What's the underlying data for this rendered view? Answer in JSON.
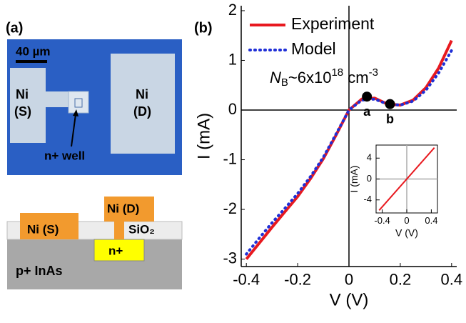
{
  "panel_a": {
    "label": "(a)",
    "scale_bar": "40 µm",
    "photo_labels": {
      "source_top": "Ni",
      "source_bottom": "(S)",
      "drain_top": "Ni",
      "drain_bottom": "(D)",
      "well": "n+ well"
    },
    "schematic_labels": {
      "source": "Ni (S)",
      "drain": "Ni (D)",
      "oxide": "SiO₂",
      "well": "n+",
      "substrate": "p+ InAs"
    }
  },
  "chart_data": [
    {
      "type": "line",
      "panel_label": "(b)",
      "x_label": "V (V)",
      "y_label": "I (mA)",
      "annotation_parts": [
        "N",
        "B",
        "~6x10",
        "18",
        " cm",
        "-3"
      ],
      "x": [
        -0.4,
        -0.35,
        -0.3,
        -0.25,
        -0.2,
        -0.15,
        -0.1,
        -0.05,
        0,
        0.05,
        0.1,
        0.15,
        0.2,
        0.25,
        0.3,
        0.35,
        0.4
      ],
      "series": [
        {
          "name": "Experiment",
          "color": "#e8191f",
          "style": "solid",
          "values": [
            -3.0,
            -2.68,
            -2.36,
            -2.05,
            -1.74,
            -1.38,
            -0.98,
            -0.5,
            0,
            0.22,
            0.24,
            0.12,
            0.1,
            0.2,
            0.45,
            0.85,
            1.4
          ]
        },
        {
          "name": "Model",
          "color": "#1f2fd6",
          "style": "dotted",
          "values": [
            -2.9,
            -2.58,
            -2.27,
            -1.98,
            -1.68,
            -1.34,
            -0.95,
            -0.48,
            0,
            0.2,
            0.22,
            0.12,
            0.1,
            0.18,
            0.4,
            0.75,
            1.2
          ]
        }
      ],
      "points": {
        "labels": [
          "a",
          "b"
        ],
        "x": [
          0.07,
          0.16
        ],
        "values": [
          0.27,
          0.12
        ]
      },
      "xlim": [
        -0.42,
        0.42
      ],
      "ylim": [
        -3.15,
        2.1
      ],
      "xticks": [
        -0.4,
        -0.2,
        0,
        0.2,
        0.4
      ],
      "yticks": [
        -3,
        -2,
        -1,
        0,
        1,
        2
      ],
      "zero_lines": true,
      "legend": "top-right"
    },
    {
      "type": "line",
      "x_label": "V (V)",
      "y_label": "I (mA)",
      "x": [
        -0.45,
        0.45
      ],
      "series": [
        {
          "name": null,
          "color": "#e8191f",
          "style": "solid",
          "values": [
            -6,
            6
          ]
        }
      ],
      "xlim": [
        -0.5,
        0.5
      ],
      "ylim": [
        -6.5,
        6.5
      ],
      "xticks": [
        -0.4,
        0,
        0.4
      ],
      "yticks": [
        -4,
        0,
        4
      ],
      "zero_lines": true
    }
  ]
}
